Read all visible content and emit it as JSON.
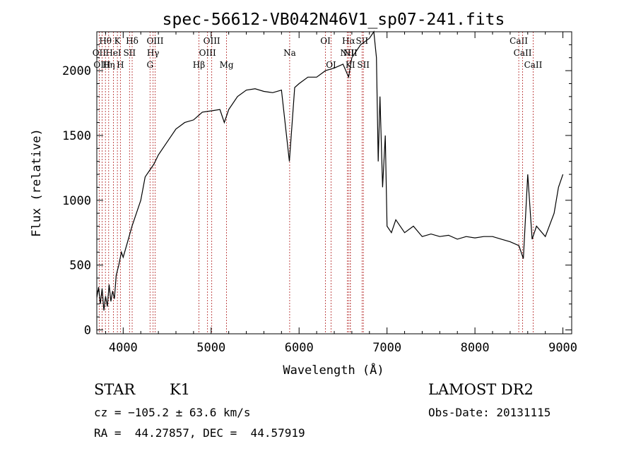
{
  "chart_data": {
    "type": "line",
    "title": "spec-56612-VB042N46V1_sp07-241.fits",
    "xlabel": "Wavelength (Å)",
    "ylabel": "Flux (relative)",
    "xlim": [
      3700,
      9100
    ],
    "ylim": [
      -30,
      2300
    ],
    "grid": false,
    "x_ticks": [
      4000,
      5000,
      6000,
      7000,
      8000,
      9000
    ],
    "x_tick_labels": [
      "4000",
      "5000",
      "6000",
      "7000",
      "8000",
      "9000"
    ],
    "y_ticks": [
      0,
      500,
      1000,
      1500,
      2000
    ],
    "y_tick_labels": [
      "0",
      "500",
      "1000",
      "1500",
      "2000"
    ],
    "series": [
      {
        "x": [
          3700,
          3720,
          3740,
          3760,
          3780,
          3800,
          3820,
          3840,
          3860,
          3880,
          3900,
          3920,
          3950,
          3980,
          4000,
          4050,
          4100,
          4150,
          4200,
          4250,
          4300,
          4350,
          4400,
          4500,
          4600,
          4700,
          4800,
          4850,
          4900,
          5000,
          5100,
          5150,
          5200,
          5300,
          5400,
          5500,
          5600,
          5700,
          5800,
          5890,
          5950,
          6000,
          6100,
          6200,
          6300,
          6400,
          6500,
          6563,
          6600,
          6700,
          6800,
          6850,
          6880,
          6900,
          6920,
          6950,
          6980,
          7000,
          7050,
          7100,
          7200,
          7300,
          7400,
          7500,
          7600,
          7700,
          7800,
          7900,
          8000,
          8100,
          8200,
          8300,
          8400,
          8500,
          8550,
          8600,
          8650,
          8700,
          8800,
          8900,
          8950,
          9000
        ],
        "y": [
          250,
          330,
          200,
          320,
          150,
          260,
          180,
          350,
          220,
          300,
          240,
          420,
          500,
          600,
          560,
          680,
          800,
          900,
          1000,
          1180,
          1230,
          1280,
          1350,
          1450,
          1550,
          1600,
          1620,
          1650,
          1680,
          1690,
          1700,
          1600,
          1700,
          1800,
          1850,
          1860,
          1840,
          1830,
          1850,
          1300,
          1870,
          1900,
          1950,
          1950,
          2000,
          2020,
          2050,
          1950,
          2100,
          2200,
          2250,
          2300,
          2100,
          1300,
          1800,
          1100,
          1500,
          800,
          750,
          850,
          750,
          800,
          720,
          740,
          720,
          730,
          700,
          720,
          710,
          720,
          720,
          700,
          680,
          650,
          550,
          1200,
          700,
          800,
          720,
          900,
          1100,
          1200
        ]
      }
    ],
    "line_markers": [
      {
        "label": "Hθ",
        "x": 3798,
        "row": 1
      },
      {
        "label": "K",
        "x": 3934,
        "row": 1
      },
      {
        "label": "Hδ",
        "x": 4102,
        "row": 1
      },
      {
        "label": "OIII",
        "x": 4363,
        "row": 1
      },
      {
        "label": "OIII",
        "x": 5007,
        "row": 1
      },
      {
        "label": "OI",
        "x": 6300,
        "row": 1
      },
      {
        "label": "Hα",
        "x": 6563,
        "row": 1
      },
      {
        "label": "SII",
        "x": 6716,
        "row": 1
      },
      {
        "label": "CaII",
        "x": 8498,
        "row": 1
      },
      {
        "label": "OII",
        "x": 3727,
        "row": 2
      },
      {
        "label": "HeI",
        "x": 3889,
        "row": 2
      },
      {
        "label": "SII",
        "x": 4072,
        "row": 2
      },
      {
        "label": "Hγ",
        "x": 4340,
        "row": 2
      },
      {
        "label": "OIII",
        "x": 4959,
        "row": 2
      },
      {
        "label": "Na",
        "x": 5893,
        "row": 2
      },
      {
        "label": "NII",
        "x": 6548,
        "row": 2
      },
      {
        "label": "NII",
        "x": 6583,
        "row": 2
      },
      {
        "label": "CaII",
        "x": 8542,
        "row": 2
      },
      {
        "label": "OIII",
        "x": 3760,
        "row": 3
      },
      {
        "label": "Hη",
        "x": 3835,
        "row": 3
      },
      {
        "label": "H",
        "x": 3968,
        "row": 3
      },
      {
        "label": "G",
        "x": 4305,
        "row": 3
      },
      {
        "label": "Hβ",
        "x": 4861,
        "row": 3
      },
      {
        "label": "Mg",
        "x": 5175,
        "row": 3
      },
      {
        "label": "OI",
        "x": 6364,
        "row": 3
      },
      {
        "label": "KI",
        "x": 6583,
        "row": 3
      },
      {
        "label": "SII",
        "x": 6731,
        "row": 3
      },
      {
        "label": "CaII",
        "x": 8662,
        "row": 3
      }
    ]
  },
  "info": {
    "object_class": "STAR",
    "subclass": "K1",
    "survey": "LAMOST DR2",
    "cz": "cz = −105.2 ± 63.6 km/s",
    "obs_date": "Obs-Date: 20131115",
    "coords": "RA =  44.27857, DEC =  44.57919"
  }
}
